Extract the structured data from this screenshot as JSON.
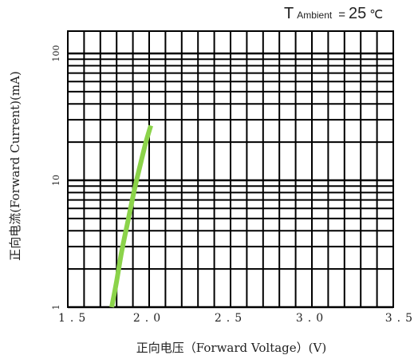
{
  "chart_data": {
    "type": "line",
    "xlabel": "正向电压（Forward Voltage）(V)",
    "ylabel": "正向电流(Forward Current)(mA)",
    "x_ticks": [
      "1.5",
      "2.0",
      "2.5",
      "3.0",
      "3.5"
    ],
    "y_ticks": [
      "1",
      "10",
      "100"
    ],
    "xlim": [
      1.5,
      3.5
    ],
    "ylim": [
      1,
      150
    ],
    "y_scale": "log",
    "grid": true,
    "annotation": {
      "symbol": "T",
      "subscript": "Ambient",
      "equals": "=",
      "value": "25",
      "unit": "℃"
    },
    "series": [
      {
        "color": "#8bd34a",
        "x": [
          1.77,
          1.8,
          1.83,
          1.87,
          1.91,
          1.95,
          1.98,
          2.01
        ],
        "y": [
          1.0,
          1.6,
          2.7,
          4.8,
          8.5,
          14.0,
          20.0,
          27.0
        ]
      }
    ]
  }
}
